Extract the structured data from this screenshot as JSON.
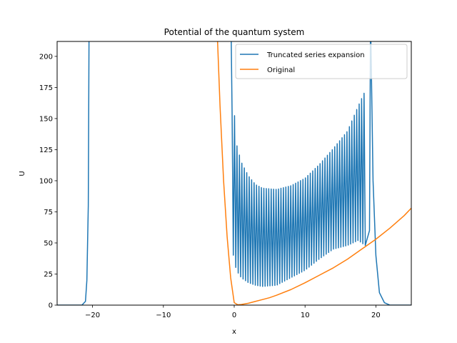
{
  "chart_data": {
    "type": "line",
    "title": "Potential of the quantum system",
    "xlabel": "x",
    "ylabel": "U",
    "xlim": [
      -25,
      25
    ],
    "ylim": [
      0,
      212
    ],
    "xticks": [
      -20,
      -10,
      0,
      10,
      20
    ],
    "yticks": [
      0,
      25,
      50,
      75,
      100,
      125,
      150,
      175,
      200
    ],
    "grid": false,
    "legend_position": "top-right",
    "series": [
      {
        "name": "Truncated series expansion",
        "color": "#1f77b4",
        "description_points": {
          "left_spike": [
            [
              -25,
              0
            ],
            [
              -21.5,
              0
            ],
            [
              -21.0,
              3
            ],
            [
              -20.8,
              20
            ],
            [
              -20.6,
              80
            ],
            [
              -20.5,
              212
            ]
          ],
          "oscillation_upper": [
            [
              -0.5,
              212
            ],
            [
              -0.3,
              155
            ],
            [
              -0.1,
              165
            ],
            [
              0.3,
              130
            ],
            [
              1,
              115
            ],
            [
              2,
              104
            ],
            [
              3,
              97
            ],
            [
              4,
              94
            ],
            [
              6,
              93
            ],
            [
              8,
              96
            ],
            [
              10,
              102
            ],
            [
              12,
              113
            ],
            [
              14,
              126
            ],
            [
              16,
              140
            ],
            [
              17.5,
              160
            ],
            [
              18.7,
              175
            ],
            [
              19.3,
              212
            ]
          ],
          "oscillation_lower": [
            [
              -0.3,
              45
            ],
            [
              0.3,
              28
            ],
            [
              1,
              22
            ],
            [
              2,
              18
            ],
            [
              3,
              16
            ],
            [
              4,
              15
            ],
            [
              6,
              16
            ],
            [
              8,
              22
            ],
            [
              10,
              28
            ],
            [
              12,
              37
            ],
            [
              14,
              45
            ],
            [
              16,
              48
            ],
            [
              17.5,
              52
            ],
            [
              18.5,
              48
            ]
          ],
          "right_decay": [
            [
              19.3,
              212
            ],
            [
              19.6,
              100
            ],
            [
              20.0,
              40
            ],
            [
              20.5,
              10
            ],
            [
              21.2,
              2
            ],
            [
              22,
              0
            ],
            [
              25,
              0
            ]
          ]
        }
      },
      {
        "name": "Original",
        "color": "#ff7f0e",
        "formula": "U = 0.16*(exp(-2x) - 2*exp(-x) + 1) ... approximate Morse-like potential",
        "points": [
          [
            -2.35,
            212
          ],
          [
            -2.0,
            160
          ],
          [
            -1.5,
            100
          ],
          [
            -1.0,
            55
          ],
          [
            -0.5,
            22
          ],
          [
            0,
            2
          ],
          [
            0.5,
            0.3
          ],
          [
            1,
            0.5
          ],
          [
            2,
            1.5
          ],
          [
            3,
            3
          ],
          [
            4,
            4.5
          ],
          [
            5,
            6
          ],
          [
            6,
            8
          ],
          [
            8,
            12.5
          ],
          [
            10,
            18
          ],
          [
            12,
            24
          ],
          [
            14,
            30
          ],
          [
            16,
            37
          ],
          [
            18,
            45
          ],
          [
            20,
            53
          ],
          [
            22,
            62
          ],
          [
            24,
            72
          ],
          [
            25,
            78
          ]
        ]
      }
    ]
  }
}
